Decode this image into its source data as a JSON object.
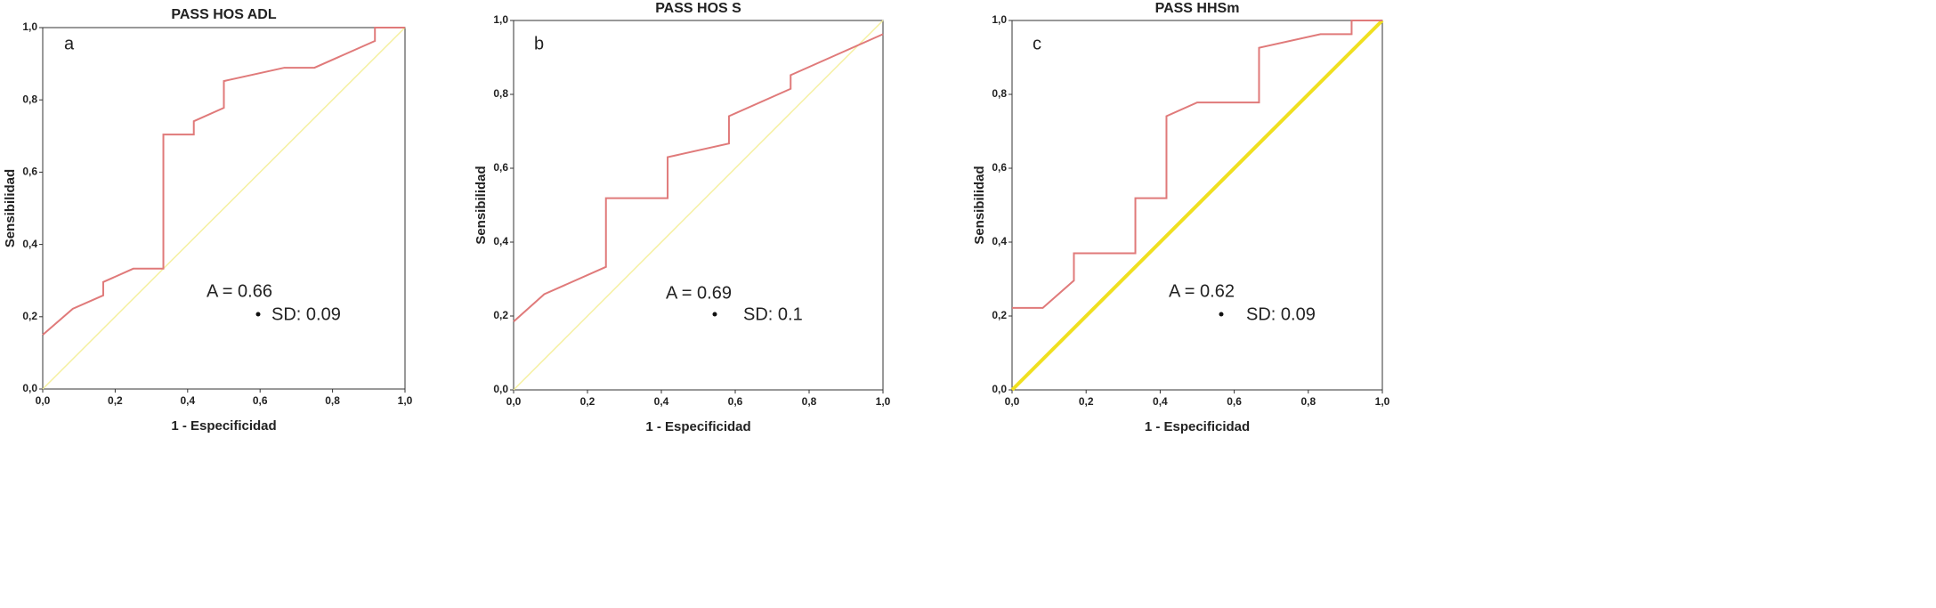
{
  "chart_data": [
    {
      "type": "line",
      "title": "PASS HOS ADL",
      "panel_label": "a",
      "annotations": [
        "A = 0.66",
        "SD: 0.09"
      ],
      "x_label": "1 - Especificidad",
      "y_label": "Sensibilidad",
      "xlim": [
        0,
        1
      ],
      "ylim": [
        0,
        1
      ],
      "xticks": [
        {
          "value": 0,
          "label": "0,0"
        },
        {
          "value": 0.2,
          "label": "0,2"
        },
        {
          "value": 0.4,
          "label": "0,4"
        },
        {
          "value": 0.6,
          "label": "0,6"
        },
        {
          "value": 0.8,
          "label": "0,8"
        },
        {
          "value": 1,
          "label": "1,0"
        }
      ],
      "yticks": [
        {
          "value": 0,
          "label": "0,0"
        },
        {
          "value": 0.2,
          "label": "0,2"
        },
        {
          "value": 0.4,
          "label": "0,4"
        },
        {
          "value": 0.6,
          "label": "0,6"
        },
        {
          "value": 0.8,
          "label": "0,8"
        },
        {
          "value": 1,
          "label": "1,0"
        }
      ],
      "series": [
        {
          "color": "#e07a7a",
          "width": 2,
          "x": [
            0,
            0.083,
            0.167,
            0.167,
            0.25,
            0.333,
            0.333,
            0.417,
            0.417,
            0.5,
            0.5,
            0.667,
            0.75,
            0.917,
            0.917,
            1
          ],
          "values": [
            0.15,
            0.222,
            0.259,
            0.296,
            0.333,
            0.333,
            0.704,
            0.704,
            0.741,
            0.778,
            0.852,
            0.889,
            0.889,
            0.963,
            1,
            1
          ]
        },
        {
          "color": "#f5f0a0",
          "width": 1.5,
          "x": [
            0,
            1
          ],
          "values": [
            0,
            1
          ]
        }
      ]
    },
    {
      "type": "line",
      "title": "PASS HOS S",
      "panel_label": "b",
      "annotations": [
        "A = 0.69",
        "SD: 0.1"
      ],
      "x_label": "1 - Especificidad",
      "y_label": "Sensibilidad",
      "xlim": [
        0,
        1
      ],
      "ylim": [
        0,
        1
      ],
      "xticks": [
        {
          "value": 0,
          "label": "0,0"
        },
        {
          "value": 0.2,
          "label": "0,2"
        },
        {
          "value": 0.4,
          "label": "0,4"
        },
        {
          "value": 0.6,
          "label": "0,6"
        },
        {
          "value": 0.8,
          "label": "0,8"
        },
        {
          "value": 1,
          "label": "1,0"
        }
      ],
      "yticks": [
        {
          "value": 0,
          "label": "0,0"
        },
        {
          "value": 0.2,
          "label": "0,2"
        },
        {
          "value": 0.4,
          "label": "0,4"
        },
        {
          "value": 0.6,
          "label": "0,6"
        },
        {
          "value": 0.8,
          "label": "0,8"
        },
        {
          "value": 1,
          "label": "1,0"
        }
      ],
      "series": [
        {
          "color": "#e07a7a",
          "width": 2,
          "x": [
            0,
            0.083,
            0.25,
            0.25,
            0.417,
            0.417,
            0.583,
            0.583,
            0.75,
            0.75,
            1
          ],
          "values": [
            0.185,
            0.259,
            0.333,
            0.519,
            0.519,
            0.63,
            0.667,
            0.741,
            0.815,
            0.852,
            0.963
          ]
        },
        {
          "color": "#f5f0a0",
          "width": 1.5,
          "x": [
            0,
            1
          ],
          "values": [
            0,
            1
          ]
        }
      ]
    },
    {
      "type": "line",
      "title": "PASS HHSm",
      "panel_label": "c",
      "annotations": [
        "A = 0.62",
        "SD: 0.09"
      ],
      "x_label": "1 - Especificidad",
      "y_label": "Sensibilidad",
      "xlim": [
        0,
        1
      ],
      "ylim": [
        0,
        1
      ],
      "xticks": [
        {
          "value": 0,
          "label": "0,0"
        },
        {
          "value": 0.2,
          "label": "0,2"
        },
        {
          "value": 0.4,
          "label": "0,4"
        },
        {
          "value": 0.6,
          "label": "0,6"
        },
        {
          "value": 0.8,
          "label": "0,8"
        },
        {
          "value": 1,
          "label": "1,0"
        }
      ],
      "yticks": [
        {
          "value": 0,
          "label": "0,0"
        },
        {
          "value": 0.2,
          "label": "0,2"
        },
        {
          "value": 0.4,
          "label": "0,4"
        },
        {
          "value": 0.6,
          "label": "0,6"
        },
        {
          "value": 0.8,
          "label": "0,8"
        },
        {
          "value": 1,
          "label": "1,0"
        }
      ],
      "series": [
        {
          "color": "#e07a7a",
          "width": 2,
          "x": [
            0,
            0.083,
            0.167,
            0.167,
            0.333,
            0.333,
            0.417,
            0.417,
            0.5,
            0.667,
            0.667,
            0.833,
            0.917,
            0.917,
            1
          ],
          "values": [
            0.222,
            0.222,
            0.296,
            0.37,
            0.37,
            0.519,
            0.519,
            0.741,
            0.778,
            0.778,
            0.926,
            0.963,
            0.963,
            1,
            1
          ]
        },
        {
          "color": "#f0e020",
          "width": 4,
          "x": [
            0,
            1
          ],
          "values": [
            0,
            1
          ]
        }
      ]
    }
  ]
}
